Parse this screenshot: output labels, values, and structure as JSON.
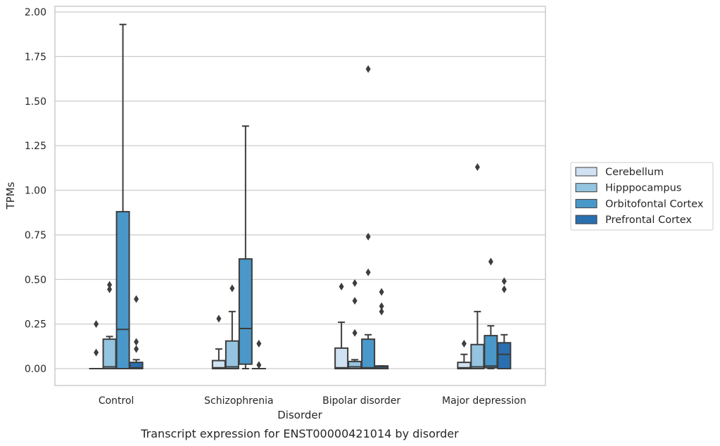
{
  "caption": "Transcript expression for ENST00000421014 by disorder",
  "chart_data": {
    "type": "box",
    "xlabel": "Disorder",
    "ylabel": "TPMs",
    "ylim": [
      -0.09,
      2.02
    ],
    "yticks": [
      "0.00",
      "0.25",
      "0.50",
      "0.75",
      "1.00",
      "1.25",
      "1.50",
      "1.75",
      "2.00"
    ],
    "grid": "horizontal",
    "legend_position": "right",
    "categories": [
      "Control",
      "Schizophrenia",
      "Bipolar disorder",
      "Major depression"
    ],
    "series": [
      {
        "name": "Cerebellum",
        "color": "#d0e1f2",
        "boxes": [
          {
            "min": 0,
            "q1": 0,
            "median": 0,
            "q3": 0,
            "max": 0,
            "outliers": [
              0.25,
              0.09
            ]
          },
          {
            "min": 0,
            "q1": 0,
            "median": 0.005,
            "q3": 0.045,
            "max": 0.11,
            "outliers": [
              0.28
            ]
          },
          {
            "min": 0,
            "q1": 0,
            "median": 0.005,
            "q3": 0.115,
            "max": 0.26,
            "outliers": [
              0.46
            ]
          },
          {
            "min": 0,
            "q1": 0,
            "median": 0.005,
            "q3": 0.035,
            "max": 0.08,
            "outliers": [
              0.14
            ]
          }
        ]
      },
      {
        "name": "Hipppocampus",
        "color": "#94c4df",
        "boxes": [
          {
            "min": 0,
            "q1": 0,
            "median": 0.01,
            "q3": 0.165,
            "max": 0.18,
            "outliers": [
              0.47,
              0.445
            ]
          },
          {
            "min": 0,
            "q1": 0,
            "median": 0.01,
            "q3": 0.155,
            "max": 0.32,
            "outliers": [
              0.45
            ]
          },
          {
            "min": 0,
            "q1": 0,
            "median": 0.01,
            "q3": 0.04,
            "max": 0.05,
            "outliers": [
              0.48,
              0.38,
              0.2
            ]
          },
          {
            "min": 0,
            "q1": 0,
            "median": 0.01,
            "q3": 0.135,
            "max": 0.32,
            "outliers": [
              1.13
            ]
          }
        ]
      },
      {
        "name": "Orbitofontal Cortex",
        "color": "#4a98c9",
        "boxes": [
          {
            "min": 0,
            "q1": 0,
            "median": 0.22,
            "q3": 0.88,
            "max": 1.93,
            "outliers": []
          },
          {
            "min": 0,
            "q1": 0.025,
            "median": 0.225,
            "q3": 0.615,
            "max": 1.36,
            "outliers": []
          },
          {
            "min": 0,
            "q1": 0,
            "median": 0.005,
            "q3": 0.165,
            "max": 0.19,
            "outliers": [
              1.68,
              0.74,
              0.54
            ]
          },
          {
            "min": 0,
            "q1": 0.005,
            "median": 0.015,
            "q3": 0.185,
            "max": 0.24,
            "outliers": [
              0.6
            ]
          }
        ]
      },
      {
        "name": "Prefrontal Cortex",
        "color": "#2a6fb0",
        "boxes": [
          {
            "min": 0,
            "q1": 0,
            "median": 0.005,
            "q3": 0.035,
            "max": 0.05,
            "outliers": [
              0.39,
              0.15,
              0.11
            ]
          },
          {
            "min": 0,
            "q1": 0,
            "median": 0,
            "q3": 0,
            "max": 0,
            "outliers": [
              0.14,
              0.02
            ]
          },
          {
            "min": 0,
            "q1": 0,
            "median": 0.01,
            "q3": 0.015,
            "max": 0.015,
            "outliers": [
              0.43,
              0.35,
              0.32
            ]
          },
          {
            "min": 0,
            "q1": 0,
            "median": 0.08,
            "q3": 0.145,
            "max": 0.19,
            "outliers": [
              0.49,
              0.445
            ]
          }
        ]
      }
    ]
  }
}
